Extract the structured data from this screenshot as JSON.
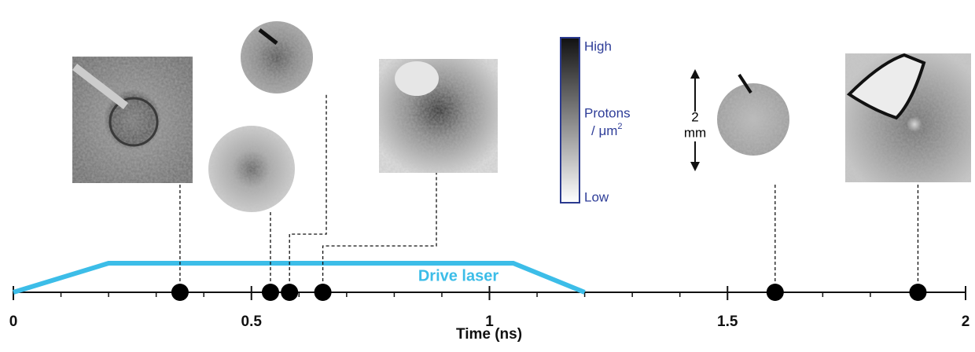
{
  "chart_data": {
    "type": "timeline",
    "xlabel": "Time (ns)",
    "xlim": [
      0,
      2
    ],
    "xticks": [
      0,
      0.5,
      1,
      1.5,
      2
    ],
    "xminor_ticks": [
      0.1,
      0.2,
      0.3,
      0.4,
      0.6,
      0.7,
      0.8,
      0.9,
      1.1,
      1.2,
      1.3,
      1.4,
      1.6,
      1.7,
      1.8,
      1.9
    ],
    "events": {
      "x": [
        0.35,
        0.54,
        0.58,
        0.65,
        1.6,
        1.9
      ],
      "color": "#000000"
    },
    "laser": {
      "name": "Drive laser",
      "x": [
        0,
        0.2,
        1.05,
        1.2
      ],
      "color": "#3cbde8"
    }
  },
  "colorbar": {
    "high": "High",
    "label": "Protons",
    "unit": "/ μm",
    "unit_sup": "2",
    "low": "Low"
  },
  "scale_bar": {
    "value": "2",
    "unit": "mm"
  }
}
